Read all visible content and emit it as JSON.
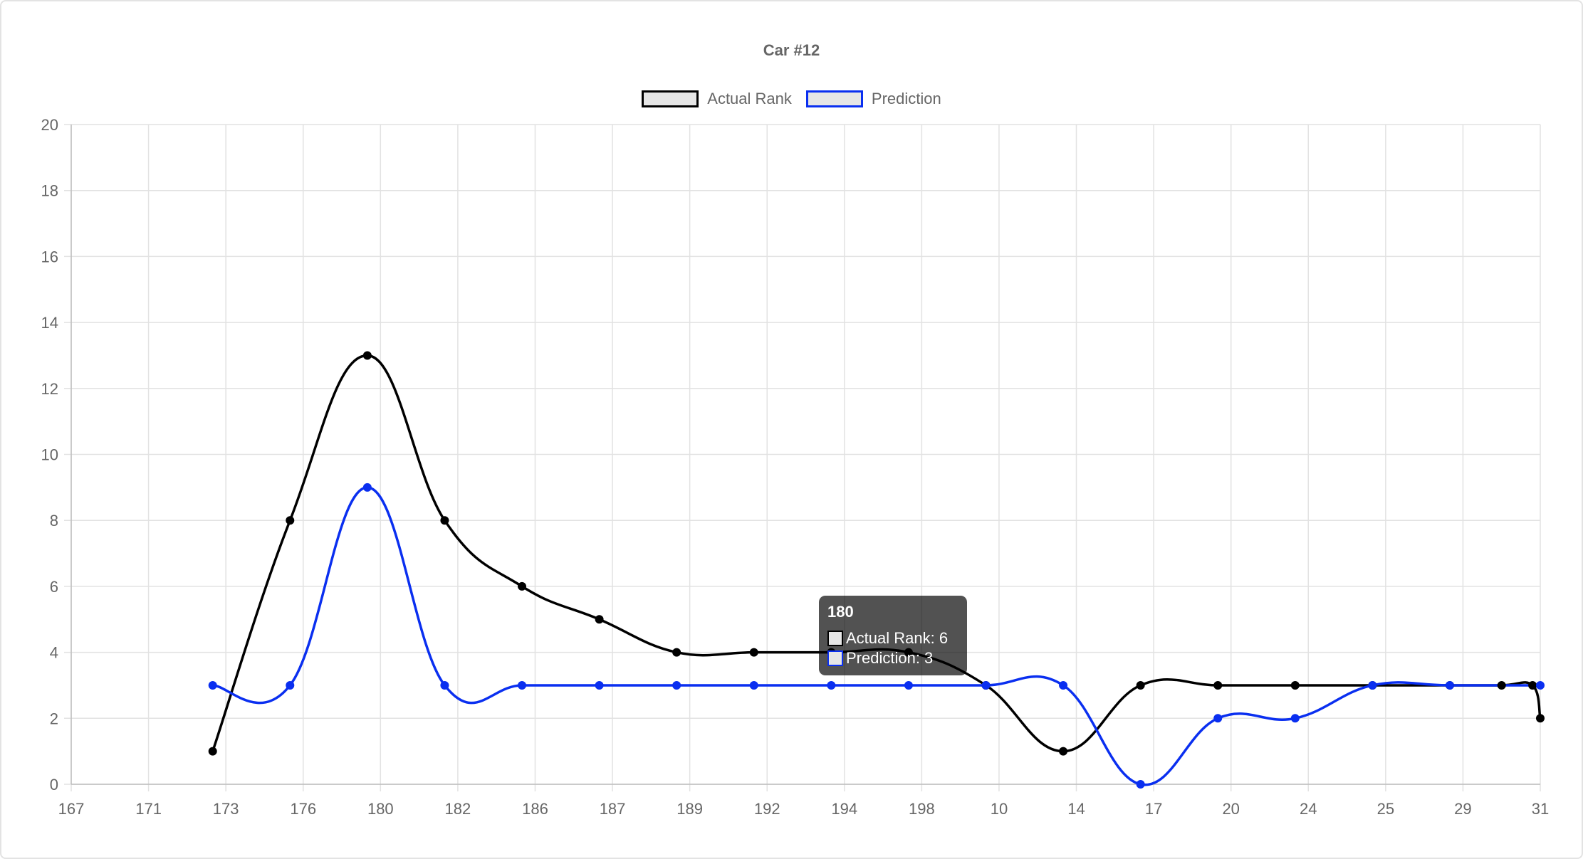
{
  "chart_data": {
    "type": "line",
    "title": "Car #12",
    "legend_position": "top",
    "grid": true,
    "x_tick_labels": [
      "167",
      "171",
      "173",
      "176",
      "180",
      "182",
      "186",
      "187",
      "189",
      "192",
      "194",
      "198",
      "10",
      "14",
      "17",
      "20",
      "24",
      "25",
      "29",
      "31"
    ],
    "ylim": [
      0,
      20
    ],
    "y_ticks": [
      0,
      2,
      4,
      6,
      8,
      10,
      12,
      14,
      16,
      18,
      20
    ],
    "xlim": [
      0,
      19
    ],
    "series": [
      {
        "name": "Actual Rank",
        "color": "#000000",
        "points": [
          {
            "x": 1.83,
            "y": 1
          },
          {
            "x": 2.83,
            "y": 8
          },
          {
            "x": 3.83,
            "y": 13
          },
          {
            "x": 4.83,
            "y": 8
          },
          {
            "x": 5.83,
            "y": 6
          },
          {
            "x": 6.83,
            "y": 5
          },
          {
            "x": 7.83,
            "y": 4
          },
          {
            "x": 8.83,
            "y": 4
          },
          {
            "x": 9.83,
            "y": 4
          },
          {
            "x": 10.83,
            "y": 4
          },
          {
            "x": 11.83,
            "y": 3
          },
          {
            "x": 12.83,
            "y": 1
          },
          {
            "x": 13.83,
            "y": 3
          },
          {
            "x": 14.83,
            "y": 3
          },
          {
            "x": 15.83,
            "y": 3
          },
          {
            "x": 16.83,
            "y": 3
          },
          {
            "x": 17.83,
            "y": 3
          },
          {
            "x": 18.5,
            "y": 3
          },
          {
            "x": 18.9,
            "y": 3
          },
          {
            "x": 19.0,
            "y": 2
          }
        ]
      },
      {
        "name": "Prediction",
        "color": "#0a2ff0",
        "points": [
          {
            "x": 1.83,
            "y": 3
          },
          {
            "x": 2.83,
            "y": 3
          },
          {
            "x": 3.83,
            "y": 9
          },
          {
            "x": 4.83,
            "y": 3
          },
          {
            "x": 5.83,
            "y": 3
          },
          {
            "x": 6.83,
            "y": 3
          },
          {
            "x": 7.83,
            "y": 3
          },
          {
            "x": 8.83,
            "y": 3
          },
          {
            "x": 9.83,
            "y": 3
          },
          {
            "x": 10.83,
            "y": 3
          },
          {
            "x": 11.83,
            "y": 3
          },
          {
            "x": 12.83,
            "y": 3
          },
          {
            "x": 13.83,
            "y": 0
          },
          {
            "x": 14.83,
            "y": 2
          },
          {
            "x": 15.83,
            "y": 2
          },
          {
            "x": 16.83,
            "y": 3
          },
          {
            "x": 17.83,
            "y": 3
          },
          {
            "x": 19.0,
            "y": 3
          }
        ]
      }
    ],
    "tooltip": {
      "title": "180",
      "rows": [
        {
          "label": "Actual Rank: 6",
          "color": "#000000"
        },
        {
          "label": "Prediction: 3",
          "color": "#0a2ff0"
        }
      ]
    }
  }
}
